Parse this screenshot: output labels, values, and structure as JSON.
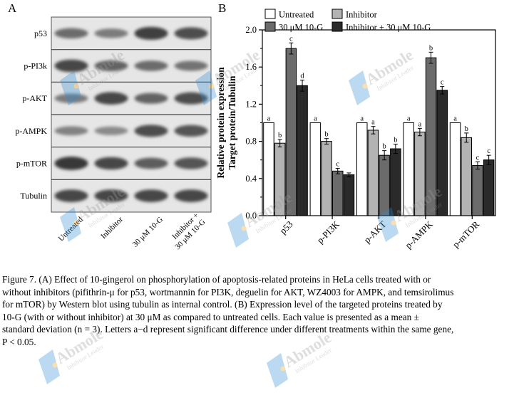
{
  "panel_a": {
    "letter": "A",
    "rows": [
      "p53",
      "p-PI3k",
      "p-AKT",
      "p-AMPK",
      "p-mTOR",
      "Tubulin"
    ],
    "lanes": [
      "Untreated",
      "Inhibitor",
      "30 μM 10-G",
      "Inhibitor + 30 μM 10-G"
    ],
    "band_intensity": [
      [
        0.55,
        0.45,
        0.85,
        0.75
      ],
      [
        0.8,
        0.6,
        0.55,
        0.5
      ],
      [
        0.45,
        0.8,
        0.6,
        0.75
      ],
      [
        0.4,
        0.35,
        0.75,
        0.7
      ],
      [
        0.9,
        0.8,
        0.65,
        0.7
      ],
      [
        0.8,
        0.8,
        0.8,
        0.8
      ]
    ]
  },
  "panel_b": {
    "letter": "B"
  },
  "watermark": {
    "brand": "Abmole",
    "tagline": "Inhibitor Leader"
  },
  "chart_data": {
    "type": "bar",
    "ylabel_line1": "Relative protein expression",
    "ylabel_line2": "Target protein/Tubulin",
    "ylim": [
      0.0,
      2.0
    ],
    "yticks": [
      "0.0",
      "0.4",
      "0.8",
      "1.2",
      "1.6",
      "2.0"
    ],
    "ytick_values": [
      0.0,
      0.4,
      0.8,
      1.2,
      1.6,
      2.0
    ],
    "categories": [
      "p53",
      "p-PI3K",
      "p-AKT",
      "p-AMPK",
      "p-mTOR"
    ],
    "legend_position": "top",
    "series": [
      {
        "name": "Untreated",
        "color": "#ffffff",
        "values": [
          1.0,
          1.0,
          1.0,
          1.0,
          1.0
        ],
        "errors": [
          0.0,
          0.0,
          0.0,
          0.0,
          0.0
        ],
        "labels": [
          "a",
          "a",
          "a",
          "a",
          "a"
        ]
      },
      {
        "name": "Inhibitor",
        "color": "#b3b3b3",
        "values": [
          0.78,
          0.8,
          0.92,
          0.9,
          0.84
        ],
        "errors": [
          0.04,
          0.03,
          0.04,
          0.04,
          0.05
        ],
        "labels": [
          "b",
          "b",
          "a",
          "a",
          "b"
        ]
      },
      {
        "name": "30 μM 10-G",
        "color": "#6b6b6b",
        "values": [
          1.8,
          0.48,
          0.65,
          1.7,
          0.54
        ],
        "errors": [
          0.06,
          0.03,
          0.05,
          0.06,
          0.04
        ],
        "labels": [
          "c",
          "c",
          "b",
          "b",
          "c"
        ]
      },
      {
        "name": "Inhibitor + 30 μM 10-G",
        "color": "#2a2a2a",
        "values": [
          1.4,
          0.44,
          0.72,
          1.35,
          0.6
        ],
        "errors": [
          0.06,
          0.02,
          0.05,
          0.04,
          0.05
        ],
        "labels": [
          "d",
          "",
          "b",
          "c",
          "c"
        ]
      }
    ]
  },
  "caption": {
    "lines": [
      "Figure 7. (A) Effect of 10-gingerol on phosphorylation of apoptosis-related proteins in HeLa cells treated with or",
      "without inhibitors (pifithrin-μ for p53, wortmannin for PI3K, deguelin for AKT, WZ4003 for AMPK, and temsirolimus",
      "for mTOR) by Western blot using tubulin as internal control. (B) Expression level of the targeted proteins treated by",
      "10-G (with or without inhibitor) at 30 μM as compared to untreated cells. Each value is presented as a mean ±",
      "standard deviation (n = 3). Letters a−d represent significant difference under different treatments within the same gene,",
      "P < 0.05."
    ]
  }
}
